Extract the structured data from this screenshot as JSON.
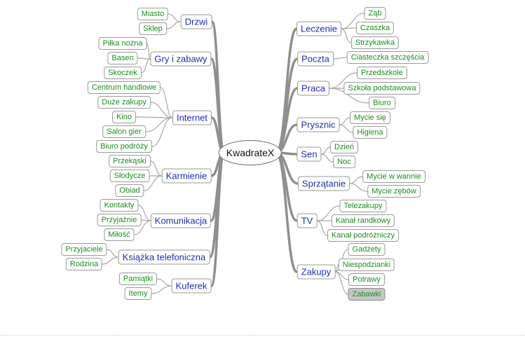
{
  "mindmap": {
    "central": "KwadrateX",
    "colors": {
      "branch_text": "#1f2fb0",
      "leaf_text": "#1e8c23",
      "node_border": "#9a9a9a",
      "branch_line": "#8f8f8f",
      "leaf_line": "#a8a8a8",
      "selected_fill": "#c7c7c7"
    },
    "left": [
      {
        "label": "Drzwi",
        "children": [
          "Miasto",
          "Sklep"
        ]
      },
      {
        "label": "Gry i zabawy",
        "children": [
          "Piłka nożna",
          "Basen",
          "Skoczek"
        ]
      },
      {
        "label": "Internet",
        "children": [
          "Centrum handlowe",
          "Duże zakupy",
          "Kino",
          "Salon gier",
          "Biuro podróży"
        ]
      },
      {
        "label": "Karmienie",
        "children": [
          "Przekąski",
          "Słodycze",
          "Obiad"
        ]
      },
      {
        "label": "Komunikacja",
        "children": [
          "Kontakty",
          "Przyjaźnie",
          "Miłość"
        ]
      },
      {
        "label": "Książka telefoniczna",
        "children": [
          "Przyjaciele",
          "Rodzina"
        ]
      },
      {
        "label": "Kuferek",
        "children": [
          "Pamiątki",
          "Itemy"
        ]
      }
    ],
    "right": [
      {
        "label": "Leczenie",
        "children": [
          "Ząb",
          "Czaszka",
          "Strzykawka"
        ]
      },
      {
        "label": "Poczta",
        "children": [
          "Ciasteczka szczęścia"
        ]
      },
      {
        "label": "Praca",
        "children": [
          "Przedszkole",
          "Szkoła podstawowa",
          "Biuro"
        ]
      },
      {
        "label": "Prysznic",
        "children": [
          "Mycie się",
          "Higiena"
        ]
      },
      {
        "label": "Sen",
        "children": [
          "Dzień",
          "Noc"
        ]
      },
      {
        "label": "Sprzątanie",
        "children": [
          "Mycie w wannie",
          "Mycie zębów"
        ]
      },
      {
        "label": "TV",
        "children": [
          "Telezakupy",
          "Kanał randkowy",
          "Kanał podróżniczy"
        ]
      },
      {
        "label": "Zakupy",
        "children": [
          "Gadżety",
          "Niespodzianki",
          "Potrawy",
          "Zabawki"
        ],
        "selected_child": "Zabawki"
      }
    ]
  }
}
